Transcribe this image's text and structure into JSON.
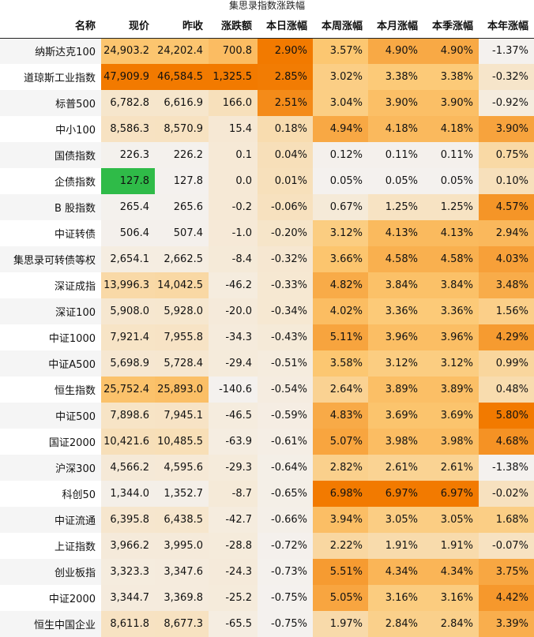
{
  "chart_data": {
    "type": "table",
    "title": "集思录指数涨跌幅",
    "columns": [
      "名称",
      "现价",
      "昨收",
      "涨跌额",
      "本日涨幅",
      "本周涨幅",
      "本月涨幅",
      "本季涨幅",
      "本年涨幅"
    ],
    "rows": [
      {
        "name": "纳斯达克100",
        "price": 24903.2,
        "prev": 24202.4,
        "chg": 700.8,
        "day": 2.9,
        "week": 3.57,
        "month": 4.9,
        "quarter": 4.9,
        "year": -1.37
      },
      {
        "name": "道琼斯工业指数",
        "price": 47909.9,
        "prev": 46584.5,
        "chg": 1325.5,
        "day": 2.85,
        "week": 3.02,
        "month": 3.38,
        "quarter": 3.38,
        "year": -0.32
      },
      {
        "name": "标普500",
        "price": 6782.8,
        "prev": 6616.9,
        "chg": 166.0,
        "day": 2.51,
        "week": 3.04,
        "month": 3.9,
        "quarter": 3.9,
        "year": -0.92
      },
      {
        "name": "中小100",
        "price": 8586.3,
        "prev": 8570.9,
        "chg": 15.4,
        "day": 0.18,
        "week": 4.94,
        "month": 4.18,
        "quarter": 4.18,
        "year": 3.9
      },
      {
        "name": "国债指数",
        "price": 226.3,
        "prev": 226.2,
        "chg": 0.1,
        "day": 0.04,
        "week": 0.12,
        "month": 0.11,
        "quarter": 0.11,
        "year": 0.75
      },
      {
        "name": "企债指数",
        "price": 127.8,
        "prev": 127.8,
        "chg": 0.0,
        "day": 0.01,
        "week": 0.05,
        "month": 0.05,
        "quarter": 0.05,
        "year": 0.1
      },
      {
        "name": "B 股指数",
        "price": 265.4,
        "prev": 265.6,
        "chg": -0.2,
        "day": -0.06,
        "week": 0.67,
        "month": 1.25,
        "quarter": 1.25,
        "year": 4.57
      },
      {
        "name": "中证转债",
        "price": 506.4,
        "prev": 507.4,
        "chg": -1.0,
        "day": -0.2,
        "week": 3.12,
        "month": 4.13,
        "quarter": 4.13,
        "year": 2.94
      },
      {
        "name": "集思录可转债等权",
        "price": 2654.1,
        "prev": 2662.5,
        "chg": -8.4,
        "day": -0.32,
        "week": 3.66,
        "month": 4.58,
        "quarter": 4.58,
        "year": 4.03
      },
      {
        "name": "深证成指",
        "price": 13996.3,
        "prev": 14042.5,
        "chg": -46.2,
        "day": -0.33,
        "week": 4.82,
        "month": 3.84,
        "quarter": 3.84,
        "year": 3.48
      },
      {
        "name": "深证100",
        "price": 5908.0,
        "prev": 5928.0,
        "chg": -20.0,
        "day": -0.34,
        "week": 4.02,
        "month": 3.36,
        "quarter": 3.36,
        "year": 1.56
      },
      {
        "name": "中证1000",
        "price": 7921.4,
        "prev": 7955.8,
        "chg": -34.3,
        "day": -0.43,
        "week": 5.11,
        "month": 3.96,
        "quarter": 3.96,
        "year": 4.29
      },
      {
        "name": "中证A500",
        "price": 5698.9,
        "prev": 5728.4,
        "chg": -29.4,
        "day": -0.51,
        "week": 3.58,
        "month": 3.12,
        "quarter": 3.12,
        "year": 0.99
      },
      {
        "name": "恒生指数",
        "price": 25752.4,
        "prev": 25893.0,
        "chg": -140.6,
        "day": -0.54,
        "week": 2.64,
        "month": 3.89,
        "quarter": 3.89,
        "year": 0.48
      },
      {
        "name": "中证500",
        "price": 7898.6,
        "prev": 7945.1,
        "chg": -46.5,
        "day": -0.59,
        "week": 4.83,
        "month": 3.69,
        "quarter": 3.69,
        "year": 5.8
      },
      {
        "name": "国证2000",
        "price": 10421.6,
        "prev": 10485.5,
        "chg": -63.9,
        "day": -0.61,
        "week": 5.07,
        "month": 3.98,
        "quarter": 3.98,
        "year": 4.68
      },
      {
        "name": "沪深300",
        "price": 4566.2,
        "prev": 4595.6,
        "chg": -29.3,
        "day": -0.64,
        "week": 2.82,
        "month": 2.61,
        "quarter": 2.61,
        "year": -1.38
      },
      {
        "name": "科创50",
        "price": 1344.0,
        "prev": 1352.7,
        "chg": -8.7,
        "day": -0.65,
        "week": 6.98,
        "month": 6.97,
        "quarter": 6.97,
        "year": -0.02
      },
      {
        "name": "中证流通",
        "price": 6395.8,
        "prev": 6438.5,
        "chg": -42.7,
        "day": -0.66,
        "week": 3.94,
        "month": 3.05,
        "quarter": 3.05,
        "year": 1.68
      },
      {
        "name": "上证指数",
        "price": 3966.2,
        "prev": 3995.0,
        "chg": -28.8,
        "day": -0.72,
        "week": 2.22,
        "month": 1.91,
        "quarter": 1.91,
        "year": -0.07
      },
      {
        "name": "创业板指",
        "price": 3323.3,
        "prev": 3347.6,
        "chg": -24.3,
        "day": -0.73,
        "week": 5.51,
        "month": 4.34,
        "quarter": 4.34,
        "year": 3.75
      },
      {
        "name": "中证2000",
        "price": 3344.7,
        "prev": 3369.8,
        "chg": -25.2,
        "day": -0.75,
        "week": 5.05,
        "month": 3.16,
        "quarter": 3.16,
        "year": 4.42
      },
      {
        "name": "恒生中国企业",
        "price": 8611.8,
        "prev": 8677.3,
        "chg": -65.5,
        "day": -0.75,
        "week": 1.97,
        "month": 2.84,
        "quarter": 2.84,
        "year": 3.39
      }
    ],
    "highlight": {
      "row": 5,
      "column": "现价",
      "color": "#2fbb48"
    },
    "colors": {
      "low": "#f4f1ee",
      "mid": "#fcc873",
      "high": "#f27a00"
    }
  }
}
